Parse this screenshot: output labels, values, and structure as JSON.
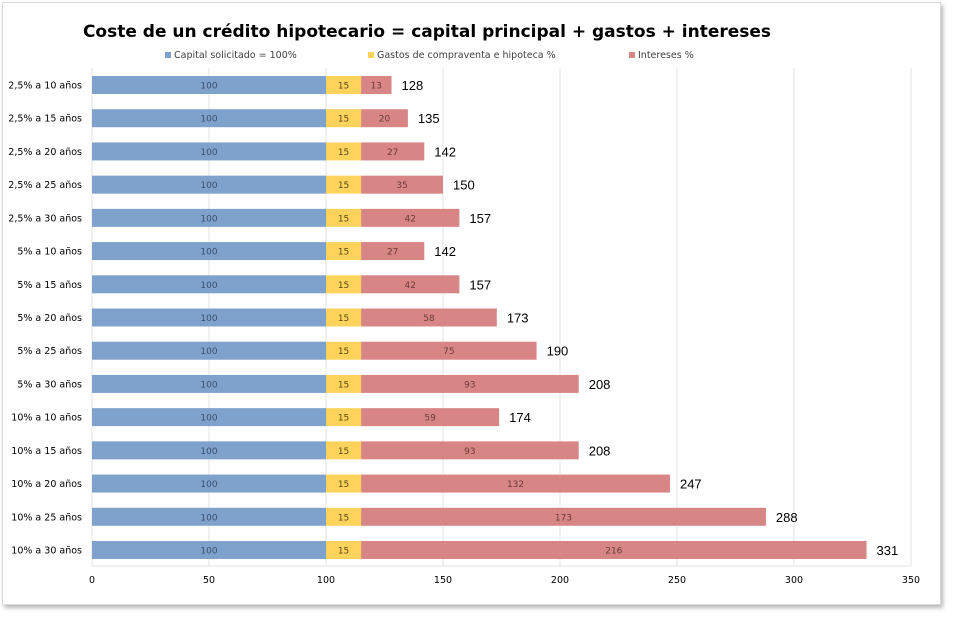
{
  "chart_data": {
    "type": "bar",
    "orientation": "horizontal",
    "stacked": true,
    "title": "Coste de un crédito hipotecario  = capital principal + gastos + intereses",
    "xlabel": "",
    "ylabel": "",
    "xlim": [
      0,
      350
    ],
    "xticks": [
      0,
      50,
      100,
      150,
      200,
      250,
      300,
      350
    ],
    "grid": true,
    "legend_position": "top",
    "categories": [
      "2,5% a 10 años",
      "2,5% a 15 años",
      "2,5% a 20 años",
      "2,5% a 25 años",
      "2,5% a 30 años",
      "5% a 10 años",
      "5% a 15 años",
      "5% a 20 años",
      "5% a 25 años",
      "5% a 30 años",
      "10% a 10 años",
      "10% a 15 años",
      "10% a 20 años",
      "10% a 25 años",
      "10% a 30 años"
    ],
    "series": [
      {
        "name": "Capital solicitado = 100%",
        "color": "#7fa2cd",
        "label_color": "#3b4f6b",
        "values": [
          100,
          100,
          100,
          100,
          100,
          100,
          100,
          100,
          100,
          100,
          100,
          100,
          100,
          100,
          100
        ]
      },
      {
        "name": "Gastos de compraventa e hipoteca %",
        "color": "#fdd35c",
        "label_color": "#5a4a10",
        "values": [
          15,
          15,
          15,
          15,
          15,
          15,
          15,
          15,
          15,
          15,
          15,
          15,
          15,
          15,
          15
        ]
      },
      {
        "name": "Intereses %",
        "color": "#d88685",
        "label_color": "#6b3a3a",
        "values": [
          13,
          20,
          27,
          35,
          42,
          27,
          42,
          58,
          75,
          93,
          59,
          93,
          132,
          173,
          216
        ]
      }
    ],
    "totals": [
      128,
      135,
      142,
      150,
      157,
      142,
      157,
      173,
      190,
      208,
      174,
      208,
      247,
      288,
      331
    ]
  }
}
